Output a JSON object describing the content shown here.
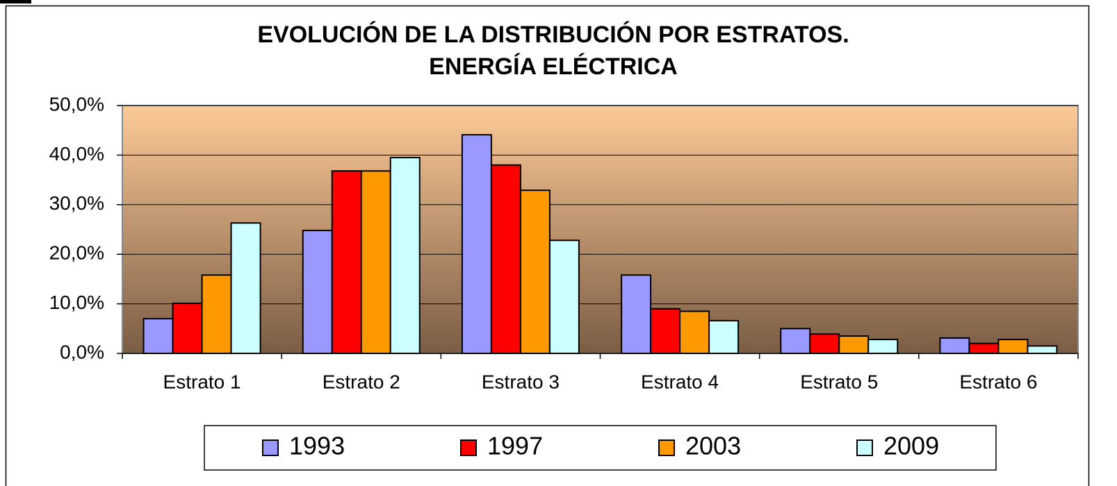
{
  "chart_data": {
    "type": "bar",
    "title": [
      "EVOLUCIÓN DE LA DISTRIBUCIÓN POR ESTRATOS.",
      "ENERGÍA ELÉCTRICA"
    ],
    "categories": [
      "Estrato 1",
      "Estrato 2",
      "Estrato 3",
      "Estrato 4",
      "Estrato 5",
      "Estrato 6"
    ],
    "series": [
      {
        "name": "1993",
        "color": "#9999ff",
        "values": [
          7.0,
          24.8,
          44.1,
          15.8,
          5.0,
          3.1
        ]
      },
      {
        "name": "1997",
        "color": "#ff0000",
        "values": [
          10.1,
          36.8,
          38.0,
          9.0,
          3.9,
          2.0
        ]
      },
      {
        "name": "2003",
        "color": "#ff9900",
        "values": [
          15.8,
          36.8,
          32.9,
          8.5,
          3.5,
          2.8
        ]
      },
      {
        "name": "2009",
        "color": "#ccffff",
        "values": [
          26.3,
          39.5,
          22.8,
          6.6,
          2.8,
          1.5
        ]
      }
    ],
    "ylim": [
      0,
      50
    ],
    "yticks": [
      {
        "value": 0,
        "label": "0,0%"
      },
      {
        "value": 10,
        "label": "10,0%"
      },
      {
        "value": 20,
        "label": "20,0%"
      },
      {
        "value": 30,
        "label": "30,0%"
      },
      {
        "value": 40,
        "label": "40,0%"
      },
      {
        "value": 50,
        "label": "50,0%"
      }
    ],
    "grid": true,
    "legend": "bottom"
  }
}
